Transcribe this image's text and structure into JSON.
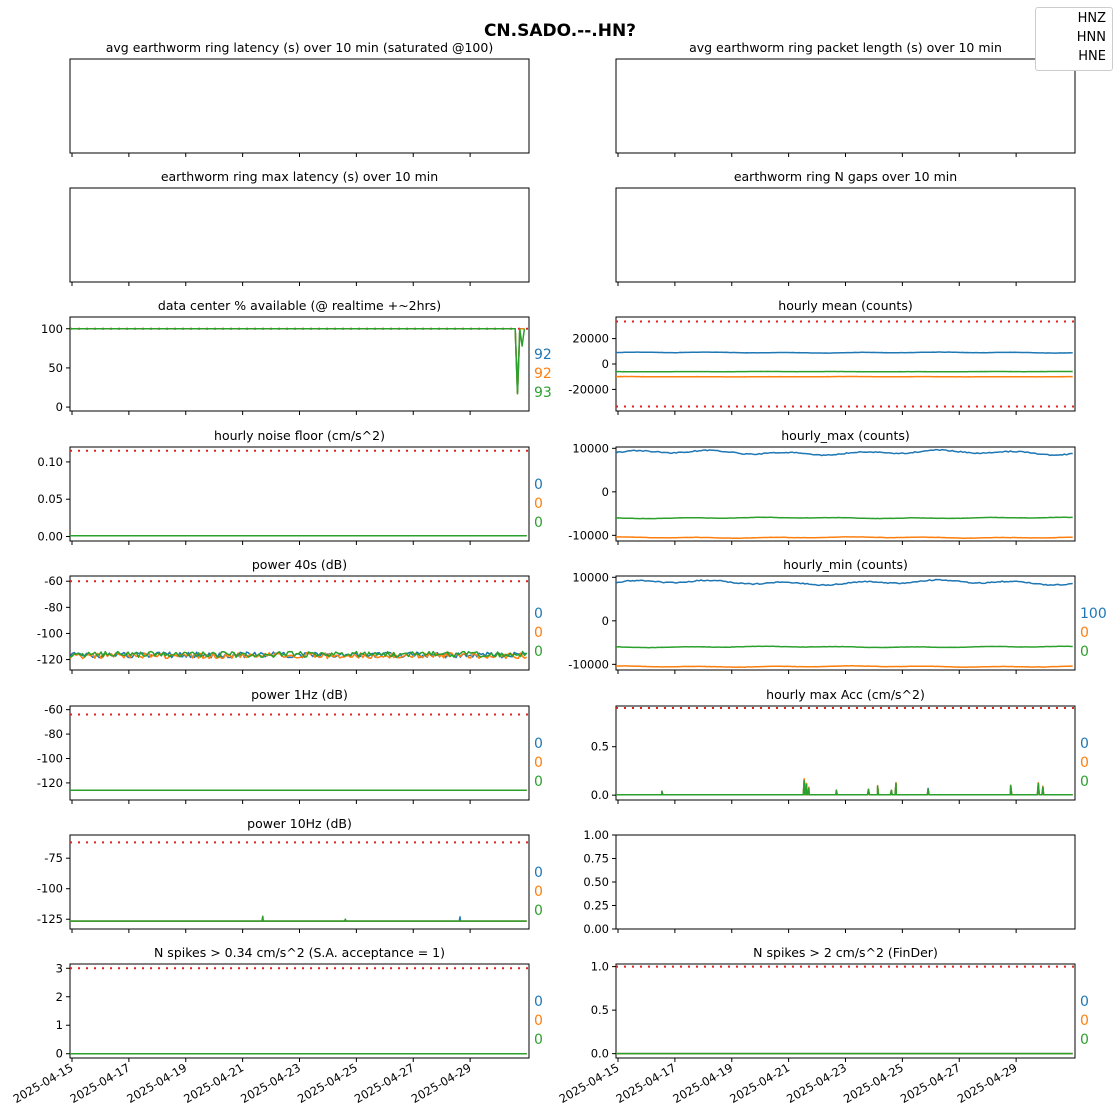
{
  "figure": {
    "title": "CN.SADO.--.HN?",
    "legend": [
      "HNZ",
      "HNN",
      "HNE"
    ]
  },
  "colors": {
    "HNZ": "#1f77b4",
    "HNN": "#ff7f0e",
    "HNE": "#2ca02c",
    "threshold": "#dd2222"
  },
  "x_axis": {
    "start": "2025-04-15",
    "end": "2025-05-01",
    "ticks": [
      "2025-04-15",
      "2025-04-17",
      "2025-04-19",
      "2025-04-21",
      "2025-04-23",
      "2025-04-25",
      "2025-04-27",
      "2025-04-29"
    ]
  },
  "chart_data": [
    {
      "id": "avg_latency",
      "type": "line",
      "title": "avg earthworm ring latency (s)   over 10 min (saturated @100)",
      "yticks": [],
      "series": [],
      "right_labels": []
    },
    {
      "id": "avg_packet",
      "type": "line",
      "title": "avg earthworm ring packet length (s)   over 10 min",
      "yticks": [],
      "series": [],
      "right_labels": []
    },
    {
      "id": "max_latency",
      "type": "line",
      "title": "earthworm ring max latency (s)   over 10 min",
      "yticks": [],
      "series": [],
      "right_labels": []
    },
    {
      "id": "n_gaps",
      "type": "line",
      "title": "earthworm ring N gaps   over 10 min",
      "yticks": [],
      "series": [],
      "right_labels": []
    },
    {
      "id": "availability",
      "type": "line",
      "title": "data center % available (@ realtime +~2hrs)",
      "ylim": [
        -5,
        115
      ],
      "yticks": [
        0,
        50,
        100
      ],
      "threshold": 100,
      "series": [
        {
          "channel": "HNZ",
          "kind": "flat",
          "value": 100,
          "dip": [
            [
              0.97,
              100
            ],
            [
              0.975,
              18
            ],
            [
              0.98,
              100
            ],
            [
              0.99,
              100
            ]
          ]
        },
        {
          "channel": "HNN",
          "kind": "flat",
          "value": 100,
          "dip": [
            [
              0.97,
              100
            ],
            [
              0.975,
              18
            ],
            [
              0.98,
              100
            ],
            [
              0.99,
              100
            ]
          ]
        },
        {
          "channel": "HNE",
          "kind": "flat",
          "value": 100,
          "dip": [
            [
              0.97,
              100
            ],
            [
              0.975,
              17
            ],
            [
              0.98,
              100
            ],
            [
              0.985,
              78
            ],
            [
              0.99,
              100
            ]
          ]
        }
      ],
      "right_labels": [
        "92",
        "92",
        "93"
      ]
    },
    {
      "id": "hourly_mean",
      "type": "line",
      "title": "hourly mean (counts)",
      "ylim": [
        -37000,
        37000
      ],
      "yticks": [
        -20000,
        0,
        20000
      ],
      "threshold": [
        33500,
        -33500
      ],
      "series": [
        {
          "channel": "HNZ",
          "kind": "wave",
          "value": 9000,
          "amp": 400,
          "noise": 150
        },
        {
          "channel": "HNN",
          "kind": "wave",
          "value": -10000,
          "amp": 150,
          "noise": 60
        },
        {
          "channel": "HNE",
          "kind": "wave",
          "value": -6000,
          "amp": 120,
          "noise": 60
        }
      ],
      "right_labels": []
    },
    {
      "id": "noise_floor",
      "type": "line",
      "title": "hourly noise floor (cm/s^2)",
      "ylim": [
        -0.006,
        0.12
      ],
      "yticks": [
        0.0,
        0.05,
        0.1
      ],
      "ytick_labels": [
        "0.00",
        "0.05",
        "0.10"
      ],
      "threshold": 0.115,
      "series": [
        {
          "channel": "HNZ",
          "kind": "flat",
          "value": 0.001
        },
        {
          "channel": "HNN",
          "kind": "flat",
          "value": 0.001
        },
        {
          "channel": "HNE",
          "kind": "flat",
          "value": 0.001
        }
      ],
      "right_labels": [
        "0",
        "0",
        "0"
      ]
    },
    {
      "id": "hourly_max",
      "type": "line",
      "title": "hourly_max (counts)",
      "ylim": [
        -11300,
        10300
      ],
      "yticks": [
        -10000,
        0,
        10000
      ],
      "threshold": null,
      "series": [
        {
          "channel": "HNZ",
          "kind": "wave",
          "value": 9000,
          "amp": 600,
          "noise": 250
        },
        {
          "channel": "HNN",
          "kind": "wave",
          "value": -10500,
          "amp": 150,
          "noise": 60
        },
        {
          "channel": "HNE",
          "kind": "wave",
          "value": -6000,
          "amp": 150,
          "noise": 60
        }
      ],
      "right_labels": []
    },
    {
      "id": "power_40s",
      "type": "line",
      "title": "power 40s (dB)",
      "ylim": [
        -128,
        -56
      ],
      "yticks": [
        -120,
        -100,
        -80,
        -60
      ],
      "threshold": -60,
      "series": [
        {
          "channel": "HNZ",
          "kind": "noisy",
          "value": -116.5,
          "noise": 2.2
        },
        {
          "channel": "HNN",
          "kind": "noisy",
          "value": -117,
          "noise": 2.2
        },
        {
          "channel": "HNE",
          "kind": "noisy",
          "value": -116,
          "noise": 2.2
        }
      ],
      "right_labels": [
        "0",
        "0",
        "0"
      ]
    },
    {
      "id": "hourly_min",
      "type": "line",
      "title": "hourly_min (counts)",
      "ylim": [
        -11300,
        10300
      ],
      "yticks": [
        -10000,
        0,
        10000
      ],
      "threshold": null,
      "series": [
        {
          "channel": "HNZ",
          "kind": "wave",
          "value": 8800,
          "amp": 600,
          "noise": 250
        },
        {
          "channel": "HNN",
          "kind": "wave",
          "value": -10500,
          "amp": 150,
          "noise": 60
        },
        {
          "channel": "HNE",
          "kind": "wave",
          "value": -6000,
          "amp": 150,
          "noise": 60
        }
      ],
      "right_labels": [
        "100",
        "0",
        "0"
      ]
    },
    {
      "id": "power_1hz",
      "type": "line",
      "title": "power 1Hz (dB)",
      "ylim": [
        -134,
        -57
      ],
      "yticks": [
        -120,
        -100,
        -80,
        -60
      ],
      "threshold": -64,
      "series": [
        {
          "channel": "HNZ",
          "kind": "flat",
          "value": -126
        },
        {
          "channel": "HNN",
          "kind": "flat",
          "value": -126
        },
        {
          "channel": "HNE",
          "kind": "flat",
          "value": -126
        }
      ],
      "right_labels": [
        "0",
        "0",
        "0"
      ]
    },
    {
      "id": "max_acc",
      "type": "line",
      "title": "hourly max Acc (cm/s^2)",
      "ylim": [
        -0.05,
        0.92
      ],
      "yticks": [
        0.0,
        0.5
      ],
      "ytick_labels": [
        "0.0",
        "0.5"
      ],
      "threshold": 0.9,
      "series": [
        {
          "channel": "HNZ",
          "kind": "spikes",
          "value": 0.005,
          "spikes": [
            [
              0.1,
              0.04
            ],
            [
              0.41,
              0.16
            ],
            [
              0.415,
              0.12
            ],
            [
              0.42,
              0.08
            ],
            [
              0.48,
              0.05
            ],
            [
              0.55,
              0.06
            ],
            [
              0.57,
              0.09
            ],
            [
              0.6,
              0.05
            ],
            [
              0.61,
              0.12
            ],
            [
              0.68,
              0.07
            ],
            [
              0.86,
              0.1
            ],
            [
              0.92,
              0.12
            ],
            [
              0.93,
              0.09
            ]
          ]
        },
        {
          "channel": "HNN",
          "kind": "spikes",
          "value": 0.005,
          "spikes": [
            [
              0.1,
              0.04
            ],
            [
              0.41,
              0.17
            ],
            [
              0.415,
              0.12
            ],
            [
              0.42,
              0.08
            ],
            [
              0.48,
              0.05
            ],
            [
              0.55,
              0.05
            ],
            [
              0.57,
              0.1
            ],
            [
              0.6,
              0.05
            ],
            [
              0.61,
              0.13
            ],
            [
              0.68,
              0.06
            ],
            [
              0.86,
              0.1
            ],
            [
              0.92,
              0.13
            ],
            [
              0.93,
              0.09
            ]
          ]
        },
        {
          "channel": "HNE",
          "kind": "spikes",
          "value": 0.005,
          "spikes": [
            [
              0.1,
              0.04
            ],
            [
              0.41,
              0.15
            ],
            [
              0.415,
              0.11
            ],
            [
              0.42,
              0.07
            ],
            [
              0.48,
              0.05
            ],
            [
              0.55,
              0.06
            ],
            [
              0.57,
              0.09
            ],
            [
              0.6,
              0.05
            ],
            [
              0.61,
              0.12
            ],
            [
              0.68,
              0.06
            ],
            [
              0.86,
              0.1
            ],
            [
              0.92,
              0.12
            ],
            [
              0.93,
              0.08
            ]
          ]
        }
      ],
      "right_labels": [
        "0",
        "0",
        "0"
      ]
    },
    {
      "id": "power_10hz",
      "type": "line",
      "title": "power 10Hz (dB)",
      "ylim": [
        -133,
        -56
      ],
      "yticks": [
        -125,
        -100,
        -75
      ],
      "threshold": -62,
      "series": [
        {
          "channel": "HNZ",
          "kind": "spikes",
          "value": -126.5,
          "spikes": [
            [
              0.85,
              -123
            ]
          ]
        },
        {
          "channel": "HNN",
          "kind": "spikes",
          "value": -126.5,
          "spikes": [
            [
              0.42,
              -123
            ]
          ]
        },
        {
          "channel": "HNE",
          "kind": "spikes",
          "value": -126.5,
          "spikes": [
            [
              0.42,
              -122.5
            ],
            [
              0.6,
              -125
            ]
          ]
        }
      ],
      "right_labels": [
        "0",
        "0",
        "0"
      ]
    },
    {
      "id": "empty_panel",
      "type": "line",
      "title": "",
      "ylim": [
        0.0,
        1.0
      ],
      "yticks": [
        0.0,
        0.25,
        0.5,
        0.75,
        1.0
      ],
      "ytick_labels": [
        "0.00",
        "0.25",
        "0.50",
        "0.75",
        "1.00"
      ],
      "threshold": null,
      "series": [],
      "right_labels": []
    },
    {
      "id": "spikes_034",
      "type": "line",
      "title": "N spikes > 0.34 cm/s^2 (S.A. acceptance = 1)",
      "ylim": [
        -0.15,
        3.15
      ],
      "yticks": [
        0,
        1,
        2,
        3
      ],
      "threshold": 3,
      "series": [
        {
          "channel": "HNZ",
          "kind": "flat",
          "value": 0
        },
        {
          "channel": "HNN",
          "kind": "flat",
          "value": 0
        },
        {
          "channel": "HNE",
          "kind": "flat",
          "value": 0
        }
      ],
      "right_labels": [
        "0",
        "0",
        "0"
      ]
    },
    {
      "id": "spikes_2",
      "type": "line",
      "title": "N spikes > 2 cm/s^2 (FinDer)",
      "ylim": [
        -0.05,
        1.03
      ],
      "yticks": [
        0.0,
        0.5,
        1.0
      ],
      "ytick_labels": [
        "0.0",
        "0.5",
        "1.0"
      ],
      "threshold": 1.0,
      "series": [
        {
          "channel": "HNZ",
          "kind": "flat",
          "value": 0
        },
        {
          "channel": "HNN",
          "kind": "flat",
          "value": 0
        },
        {
          "channel": "HNE",
          "kind": "flat",
          "value": 0
        }
      ],
      "right_labels": [
        "0",
        "0",
        "0"
      ]
    }
  ]
}
